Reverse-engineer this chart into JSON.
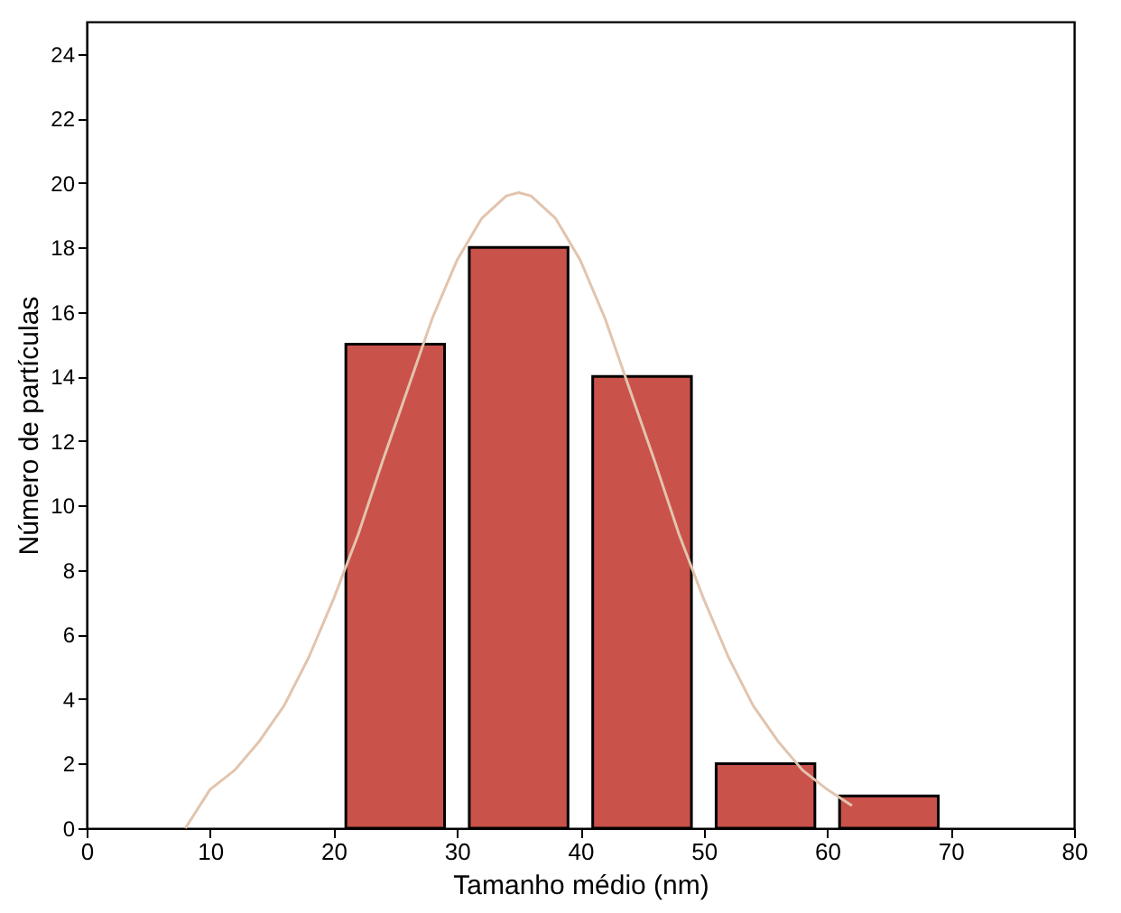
{
  "chart_data": {
    "type": "bar",
    "xlabel": "Tamanho médio (nm)",
    "ylabel": "Número de partículas",
    "x": [
      25,
      35,
      45,
      55,
      65
    ],
    "xlim": [
      0,
      80
    ],
    "xticks": [
      0,
      10,
      20,
      30,
      40,
      50,
      60,
      70,
      80
    ],
    "ylim": [
      0,
      25
    ],
    "yticks": [
      0,
      2,
      4,
      6,
      8,
      10,
      12,
      14,
      16,
      18,
      20,
      22,
      24
    ],
    "grid": false,
    "series": [
      {
        "color": "#c9524a",
        "values": [
          15,
          18,
          14,
          2,
          1
        ]
      },
      {
        "type": "line",
        "color": "#e2c4ae",
        "marker": "none",
        "x": [
          8,
          10,
          12,
          14,
          16,
          18,
          20,
          22,
          24,
          26,
          28,
          30,
          32,
          34,
          35,
          36,
          38,
          40,
          42,
          44,
          46,
          48,
          50,
          52,
          54,
          56,
          58,
          60,
          62
        ],
        "values": [
          0.0,
          1.2,
          1.8,
          2.7,
          3.8,
          5.3,
          7.1,
          9.1,
          11.4,
          13.6,
          15.8,
          17.6,
          18.9,
          19.6,
          19.7,
          19.6,
          18.9,
          17.6,
          15.8,
          13.6,
          11.4,
          9.1,
          7.1,
          5.3,
          3.8,
          2.7,
          1.8,
          1.2,
          0.7
        ]
      }
    ]
  }
}
